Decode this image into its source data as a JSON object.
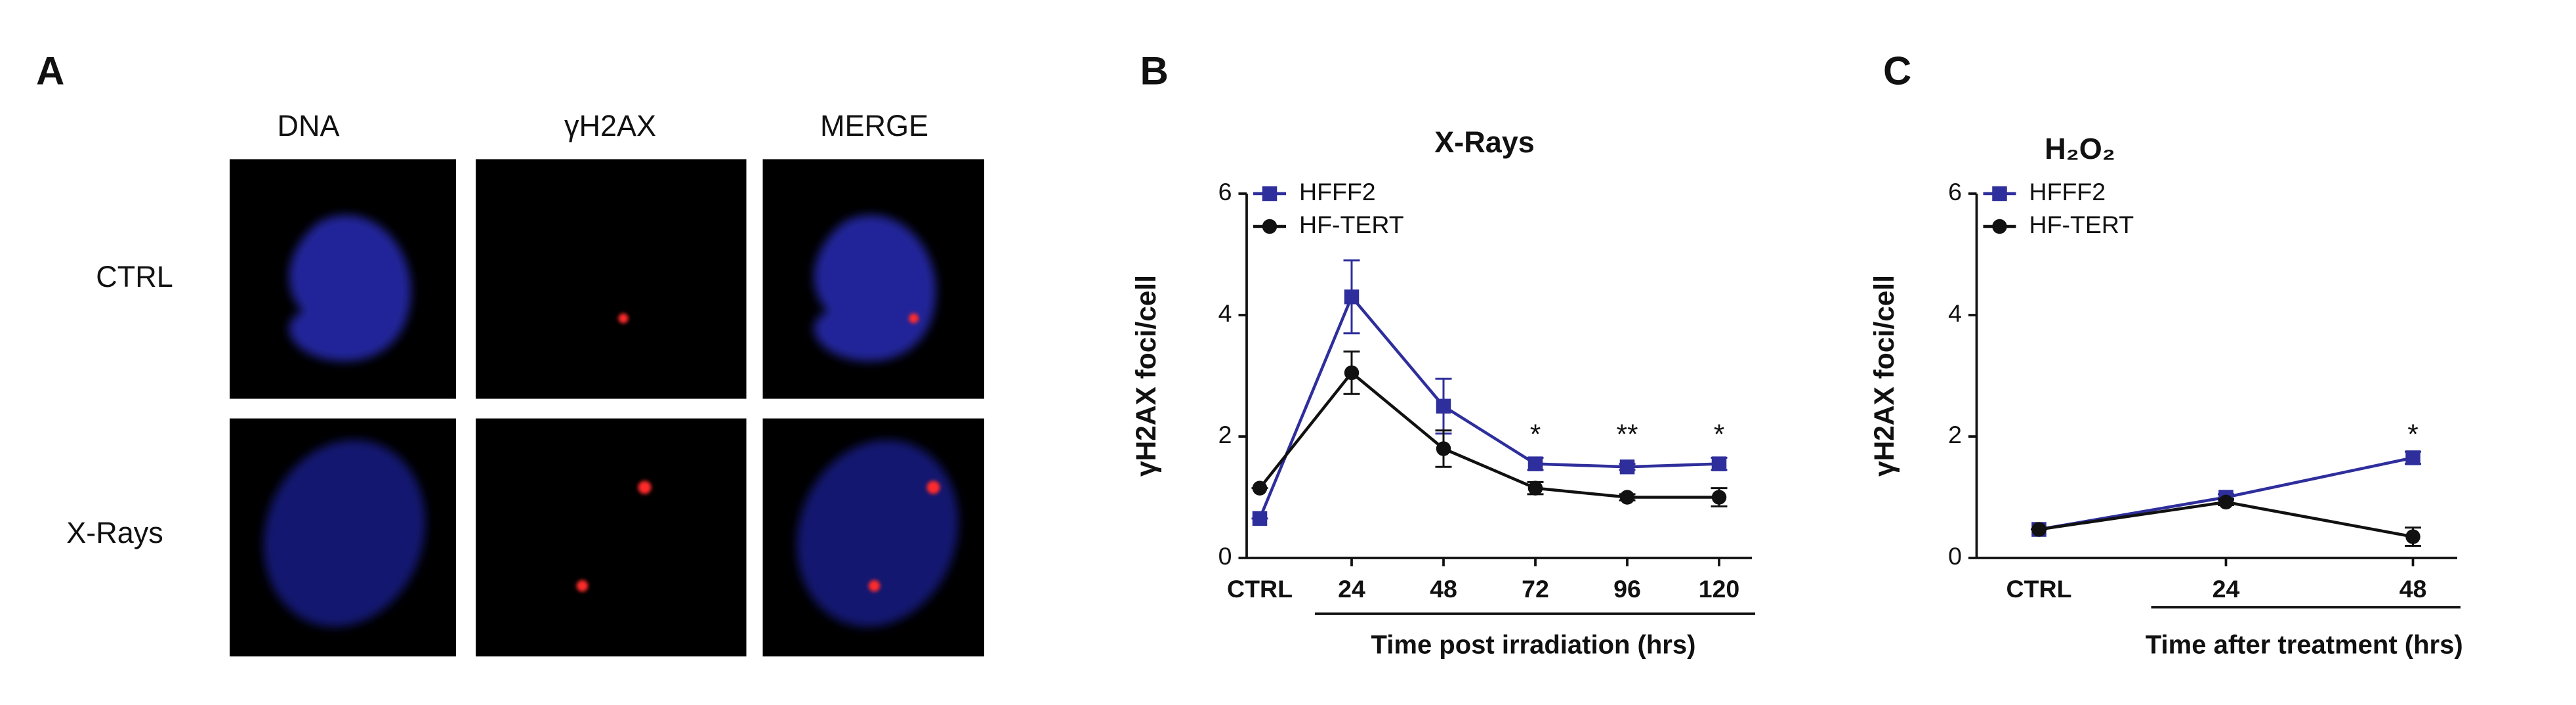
{
  "panel_a": {
    "label": "A",
    "columns": [
      "DNA",
      "γH2AX",
      "MERGE"
    ],
    "rows": [
      "CTRL",
      "X-Rays"
    ]
  },
  "chart_data": [
    {
      "type": "line",
      "label": "B",
      "title": "X-Rays",
      "y_label": "γH2AX foci/cell",
      "x_label": "Time post irradiation (hrs)",
      "categories": [
        "CTRL",
        "24",
        "48",
        "72",
        "96",
        "120"
      ],
      "series": [
        {
          "name": "HFFF2",
          "color": "#2e2e9c",
          "marker": "square",
          "values": [
            0.65,
            4.3,
            2.5,
            1.55,
            1.5,
            1.55
          ],
          "errors": [
            0,
            0.6,
            0.45,
            0.1,
            0.05,
            0.1
          ]
        },
        {
          "name": "HF-TERT",
          "color": "#111111",
          "marker": "circle",
          "values": [
            1.15,
            3.05,
            1.8,
            1.15,
            1.0,
            1.0
          ],
          "errors": [
            0,
            0.35,
            0.3,
            0.1,
            0.05,
            0.15
          ]
        }
      ],
      "annotations": [
        {
          "text": "*",
          "x": "72",
          "y": 2.0
        },
        {
          "text": "**",
          "x": "96",
          "y": 2.0
        },
        {
          "text": "*",
          "x": "120",
          "y": 2.0
        }
      ],
      "ylim": [
        0,
        6
      ],
      "yticks": [
        0,
        2,
        4,
        6
      ],
      "legend": "upper left"
    },
    {
      "type": "line",
      "label": "C",
      "title": "H₂O₂",
      "y_label": "γH2AX foci/cell",
      "x_label": "Time after treatment (hrs)",
      "categories": [
        "CTRL",
        "24",
        "48"
      ],
      "series": [
        {
          "name": "HFFF2",
          "color": "#2e2e9c",
          "marker": "square",
          "values": [
            0.47,
            1.0,
            1.65
          ],
          "errors": [
            0,
            0.05,
            0.1
          ]
        },
        {
          "name": "HF-TERT",
          "color": "#111111",
          "marker": "circle",
          "values": [
            0.47,
            0.92,
            0.35
          ],
          "errors": [
            0,
            0.05,
            0.15
          ]
        }
      ],
      "annotations": [
        {
          "text": "*",
          "x": "48",
          "y": 2.0
        }
      ],
      "ylim": [
        0,
        6
      ],
      "yticks": [
        0,
        2,
        4,
        6
      ],
      "legend": "upper left"
    }
  ]
}
